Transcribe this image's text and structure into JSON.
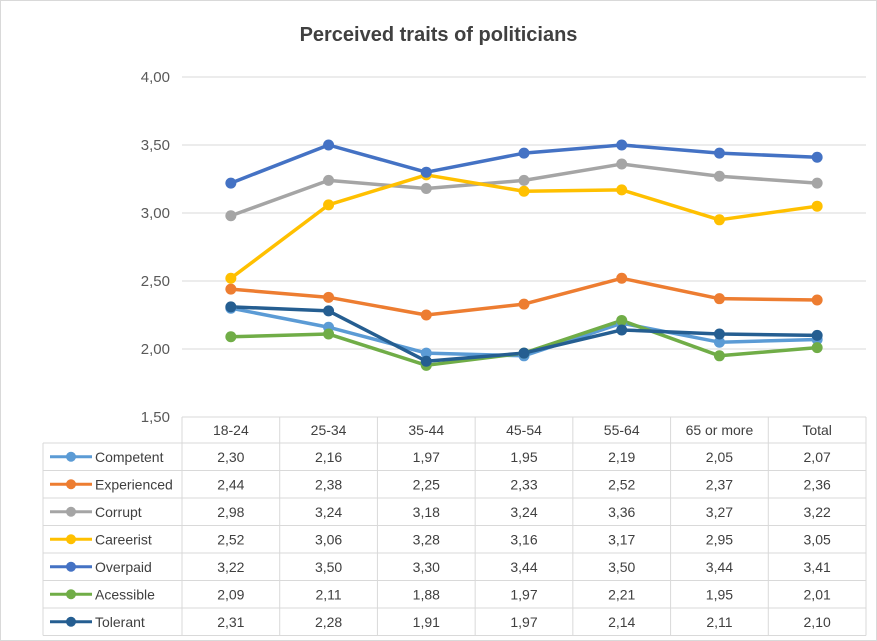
{
  "chart_data": {
    "type": "line",
    "title": "Perceived traits of politicians",
    "categories": [
      "18-24",
      "25-34",
      "35-44",
      "45-54",
      "55-64",
      "65 or more",
      "Total"
    ],
    "ylim": [
      1.5,
      4.0
    ],
    "yticks": [
      "1,50",
      "2,00",
      "2,50",
      "3,00",
      "3,50",
      "4,00"
    ],
    "grid": true,
    "legend": "data-table",
    "series": [
      {
        "name": "Competent",
        "color": "#5b9bd5",
        "values": [
          2.3,
          2.16,
          1.97,
          1.95,
          2.19,
          2.05,
          2.07
        ],
        "labels": [
          "2,30",
          "2,16",
          "1,97",
          "1,95",
          "2,19",
          "2,05",
          "2,07"
        ]
      },
      {
        "name": "Experienced",
        "color": "#ed7d31",
        "values": [
          2.44,
          2.38,
          2.25,
          2.33,
          2.52,
          2.37,
          2.36
        ],
        "labels": [
          "2,44",
          "2,38",
          "2,25",
          "2,33",
          "2,52",
          "2,37",
          "2,36"
        ]
      },
      {
        "name": "Corrupt",
        "color": "#a5a5a5",
        "values": [
          2.98,
          3.24,
          3.18,
          3.24,
          3.36,
          3.27,
          3.22
        ],
        "labels": [
          "2,98",
          "3,24",
          "3,18",
          "3,24",
          "3,36",
          "3,27",
          "3,22"
        ]
      },
      {
        "name": "Careerist",
        "color": "#ffc000",
        "values": [
          2.52,
          3.06,
          3.28,
          3.16,
          3.17,
          2.95,
          3.05
        ],
        "labels": [
          "2,52",
          "3,06",
          "3,28",
          "3,16",
          "3,17",
          "2,95",
          "3,05"
        ]
      },
      {
        "name": "Overpaid",
        "color": "#4472c4",
        "values": [
          3.22,
          3.5,
          3.3,
          3.44,
          3.5,
          3.44,
          3.41
        ],
        "labels": [
          "3,22",
          "3,50",
          "3,30",
          "3,44",
          "3,50",
          "3,44",
          "3,41"
        ]
      },
      {
        "name": "Acessible",
        "color": "#70ad47",
        "values": [
          2.09,
          2.11,
          1.88,
          1.97,
          2.21,
          1.95,
          2.01
        ],
        "labels": [
          "2,09",
          "2,11",
          "1,88",
          "1,97",
          "2,21",
          "1,95",
          "2,01"
        ]
      },
      {
        "name": "Tolerant",
        "color": "#255e91",
        "values": [
          2.31,
          2.28,
          1.91,
          1.97,
          2.14,
          2.11,
          2.1
        ],
        "labels": [
          "2,31",
          "2,28",
          "1,91",
          "1,97",
          "2,14",
          "2,11",
          "2,10"
        ]
      }
    ]
  }
}
